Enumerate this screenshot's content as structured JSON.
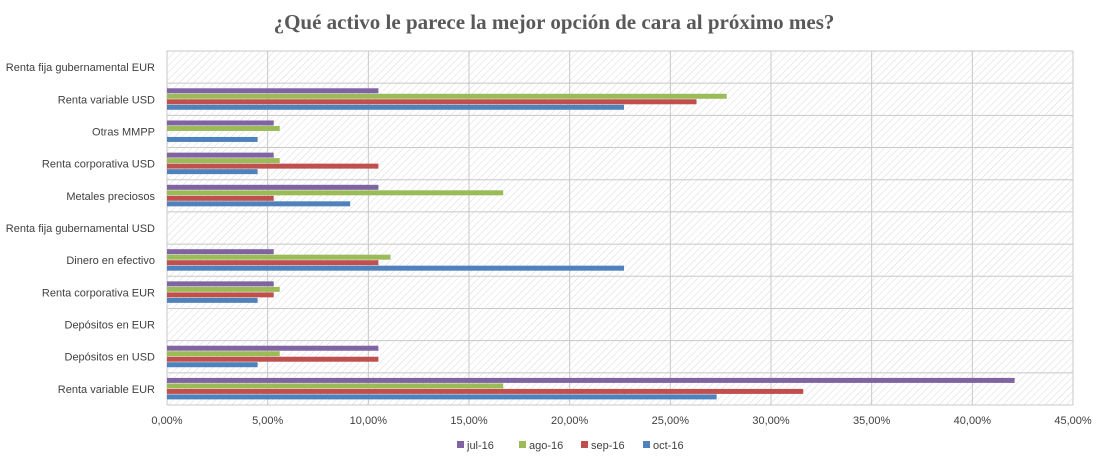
{
  "chart_data": {
    "type": "bar",
    "orientation": "horizontal",
    "title": "¿Qué activo le parece la mejor opción de cara al próximo mes?",
    "categories": [
      "Renta fija gubernamental EUR",
      "Renta variable USD",
      "Otras MMPP",
      "Renta corporativa USD",
      "Metales preciosos",
      "Renta fija gubernamental USD",
      "Dinero en efectivo",
      "Renta corporativa EUR",
      "Depósitos en EUR",
      "Depósitos en USD",
      "Renta variable EUR"
    ],
    "series": [
      {
        "name": "jul-16",
        "color": "#8064A2",
        "values": [
          0,
          10.5,
          5.3,
          5.3,
          10.5,
          0,
          5.3,
          5.3,
          0,
          10.5,
          42.1
        ]
      },
      {
        "name": "ago-16",
        "color": "#9BBB59",
        "values": [
          0,
          27.8,
          5.6,
          5.6,
          16.7,
          0,
          11.1,
          5.6,
          0,
          5.6,
          16.7
        ]
      },
      {
        "name": "sep-16",
        "color": "#C0504D",
        "values": [
          0,
          26.3,
          0,
          10.5,
          5.3,
          0,
          10.5,
          5.3,
          0,
          10.5,
          31.6
        ]
      },
      {
        "name": "oct-16",
        "color": "#4F81BD",
        "values": [
          0,
          22.7,
          4.5,
          4.5,
          9.1,
          0,
          22.7,
          4.5,
          0,
          4.5,
          27.3
        ]
      }
    ],
    "xlim": [
      0,
      45
    ],
    "xticks": [
      "0,00%",
      "5,00%",
      "10,00%",
      "15,00%",
      "20,00%",
      "25,00%",
      "30,00%",
      "35,00%",
      "40,00%",
      "45,00%"
    ],
    "xlabel": "",
    "ylabel": "",
    "grid": true,
    "legend_position": "bottom"
  }
}
